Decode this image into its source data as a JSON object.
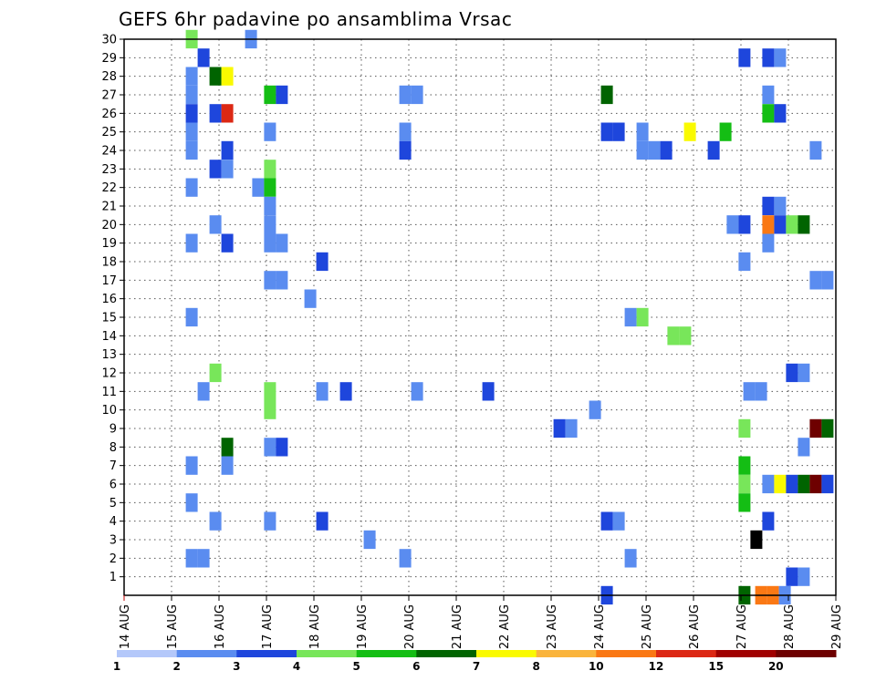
{
  "chart_data": {
    "type": "heatmap",
    "title": "GEFS 6hr padavine po ansamblima Vrsac",
    "xlabel": "",
    "ylabel": "",
    "x_tick_labels": [
      "14 AUG",
      "15 AUG",
      "16 AUG",
      "17 AUG",
      "18 AUG",
      "19 AUG",
      "20 AUG",
      "21 AUG",
      "22 AUG",
      "23 AUG",
      "24 AUG",
      "25 AUG",
      "26 AUG",
      "27 AUG",
      "28 AUG",
      "29 AUG"
    ],
    "xlim_days": [
      0,
      15
    ],
    "y_tick_labels": [
      "1",
      "2",
      "3",
      "4",
      "5",
      "6",
      "7",
      "8",
      "9",
      "10",
      "11",
      "12",
      "13",
      "14",
      "15",
      "16",
      "17",
      "18",
      "19",
      "20",
      "21",
      "22",
      "23",
      "24",
      "25",
      "26",
      "27",
      "28",
      "29",
      "30"
    ],
    "ylim": [
      0,
      30
    ],
    "grid": true,
    "colorbar": {
      "colors": [
        "#b4c8fa",
        "#5a8cf0",
        "#1e46dc",
        "#78e65a",
        "#14be14",
        "#006400",
        "#fafa00",
        "#fab43c",
        "#fa7814",
        "#dc2814",
        "#a00000",
        "#6e0000"
      ],
      "labels": [
        "1",
        "2",
        "3",
        "4",
        "5",
        "6",
        "7",
        "8",
        "10",
        "12",
        "15",
        "20"
      ]
    },
    "cells": [
      [
        1.3,
        30,
        3
      ],
      [
        2.55,
        30,
        1
      ],
      [
        1.55,
        29,
        2
      ],
      [
        12.95,
        29,
        2
      ],
      [
        13.45,
        29,
        2
      ],
      [
        13.7,
        29,
        1
      ],
      [
        1.3,
        28,
        1
      ],
      [
        1.8,
        28,
        5
      ],
      [
        2.05,
        28,
        6
      ],
      [
        1.3,
        27,
        1
      ],
      [
        2.95,
        27,
        4
      ],
      [
        3.2,
        27,
        2
      ],
      [
        5.8,
        27,
        1
      ],
      [
        6.05,
        27,
        1
      ],
      [
        10.05,
        27,
        5
      ],
      [
        13.45,
        27,
        1
      ],
      [
        1.3,
        26,
        2
      ],
      [
        1.8,
        26,
        2
      ],
      [
        2.05,
        26,
        9
      ],
      [
        13.45,
        26,
        4
      ],
      [
        13.7,
        26,
        2
      ],
      [
        1.3,
        25,
        1
      ],
      [
        2.95,
        25,
        1
      ],
      [
        5.8,
        25,
        1
      ],
      [
        10.05,
        25,
        2
      ],
      [
        10.3,
        25,
        2
      ],
      [
        10.8,
        25,
        1
      ],
      [
        11.8,
        25,
        6
      ],
      [
        12.55,
        25,
        4
      ],
      [
        1.3,
        24,
        1
      ],
      [
        2.05,
        24,
        2
      ],
      [
        5.8,
        24,
        2
      ],
      [
        10.8,
        24,
        1
      ],
      [
        11.05,
        24,
        1
      ],
      [
        11.3,
        24,
        2
      ],
      [
        12.3,
        24,
        2
      ],
      [
        14.45,
        24,
        1
      ],
      [
        1.8,
        23,
        2
      ],
      [
        2.05,
        23,
        1
      ],
      [
        2.95,
        23,
        3
      ],
      [
        1.3,
        22,
        1
      ],
      [
        2.7,
        22,
        1
      ],
      [
        2.95,
        22,
        4
      ],
      [
        2.95,
        21,
        1
      ],
      [
        13.45,
        21,
        2
      ],
      [
        13.7,
        21,
        1
      ],
      [
        1.8,
        20,
        1
      ],
      [
        2.95,
        20,
        1
      ],
      [
        12.7,
        20,
        1
      ],
      [
        12.95,
        20,
        2
      ],
      [
        13.45,
        20,
        8
      ],
      [
        13.7,
        20,
        2
      ],
      [
        13.95,
        20,
        3
      ],
      [
        14.2,
        20,
        5
      ],
      [
        1.3,
        19,
        1
      ],
      [
        2.05,
        19,
        2
      ],
      [
        2.95,
        19,
        1
      ],
      [
        3.2,
        19,
        1
      ],
      [
        13.45,
        19,
        1
      ],
      [
        4.05,
        18,
        2
      ],
      [
        12.95,
        18,
        1
      ],
      [
        2.95,
        17,
        1
      ],
      [
        3.2,
        17,
        1
      ],
      [
        14.45,
        17,
        1
      ],
      [
        14.7,
        17,
        1
      ],
      [
        3.8,
        16,
        1
      ],
      [
        1.3,
        15,
        1
      ],
      [
        10.55,
        15,
        1
      ],
      [
        10.8,
        15,
        3
      ],
      [
        11.45,
        14,
        3
      ],
      [
        11.7,
        14,
        3
      ],
      [
        1.8,
        12,
        3
      ],
      [
        13.95,
        12,
        2
      ],
      [
        14.2,
        12,
        1
      ],
      [
        1.55,
        11,
        1
      ],
      [
        2.95,
        11,
        3
      ],
      [
        4.05,
        11,
        1
      ],
      [
        4.55,
        11,
        2
      ],
      [
        6.05,
        11,
        1
      ],
      [
        7.55,
        11,
        2
      ],
      [
        13.05,
        11,
        1
      ],
      [
        13.3,
        11,
        1
      ],
      [
        2.95,
        10,
        3
      ],
      [
        9.8,
        10,
        1
      ],
      [
        9.05,
        9,
        2
      ],
      [
        9.3,
        9,
        1
      ],
      [
        12.95,
        9,
        3
      ],
      [
        14.45,
        9,
        11
      ],
      [
        14.7,
        9,
        5
      ],
      [
        2.05,
        8,
        5
      ],
      [
        2.95,
        8,
        1
      ],
      [
        3.2,
        8,
        2
      ],
      [
        14.2,
        8,
        1
      ],
      [
        1.3,
        7,
        1
      ],
      [
        2.05,
        7,
        1
      ],
      [
        12.95,
        7,
        4
      ],
      [
        12.95,
        6,
        3
      ],
      [
        13.45,
        6,
        1
      ],
      [
        13.7,
        6,
        6
      ],
      [
        13.95,
        6,
        2
      ],
      [
        14.2,
        6,
        5
      ],
      [
        14.45,
        6,
        11
      ],
      [
        14.7,
        6,
        2
      ],
      [
        1.3,
        5,
        1
      ],
      [
        12.95,
        5,
        4
      ],
      [
        1.8,
        4,
        1
      ],
      [
        2.95,
        4,
        1
      ],
      [
        4.05,
        4,
        2
      ],
      [
        10.05,
        4,
        2
      ],
      [
        10.3,
        4,
        1
      ],
      [
        13.45,
        4,
        2
      ],
      [
        5.05,
        3,
        1
      ],
      [
        13.2,
        3,
        12
      ],
      [
        1.3,
        2,
        1
      ],
      [
        1.55,
        2,
        1
      ],
      [
        5.8,
        2,
        1
      ],
      [
        10.55,
        2,
        1
      ],
      [
        13.95,
        1,
        2
      ],
      [
        14.2,
        1,
        1
      ],
      [
        10.05,
        0,
        2
      ],
      [
        12.95,
        0,
        5
      ],
      [
        13.3,
        0,
        8
      ],
      [
        13.55,
        0,
        8
      ],
      [
        13.8,
        0,
        1
      ]
    ]
  }
}
